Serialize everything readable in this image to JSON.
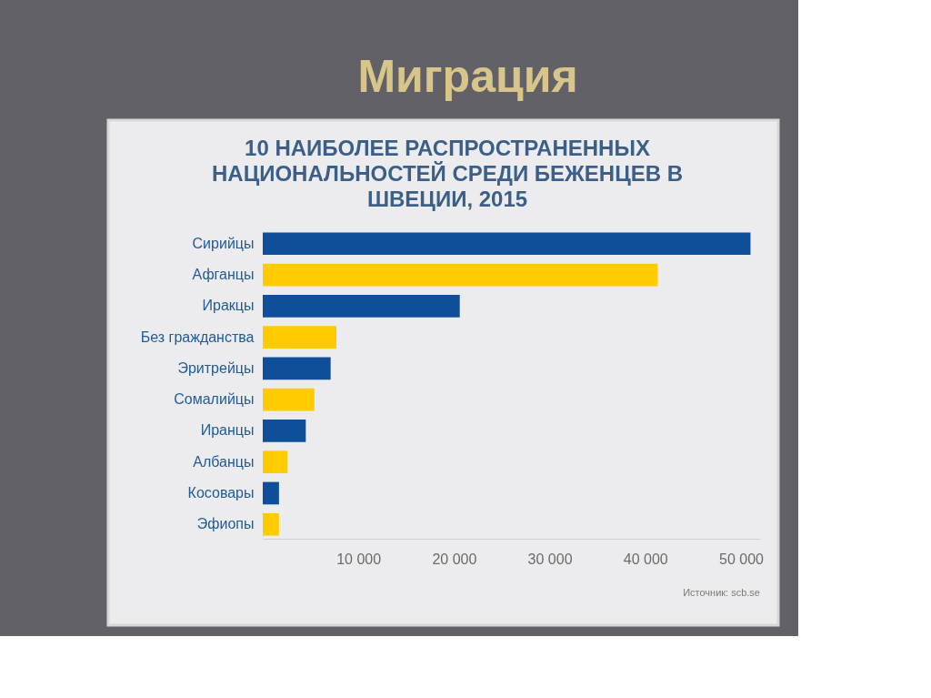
{
  "chart_data": {
    "type": "bar",
    "orientation": "horizontal",
    "title": "Миграция",
    "subtitle": "10 НАИБОЛЕЕ РАСПРОСТРАНЕННЫХ НАЦИОНАЛЬНОСТЕЙ СРЕДИ БЕЖЕНЦЕВ В ШВЕЦИИ, 2015",
    "categories": [
      "Сирийцы",
      "Афганцы",
      "Иракцы",
      "Без гражданства",
      "Эритрейцы",
      "Сомалийцы",
      "Иранцы",
      "Албанцы",
      "Косовары",
      "Эфиопы"
    ],
    "values": [
      51000,
      41300,
      20600,
      7700,
      7100,
      5400,
      4500,
      2600,
      1700,
      1700
    ],
    "colors": [
      "#0f4f9a",
      "#ffcc00",
      "#0f4f9a",
      "#ffcc00",
      "#0f4f9a",
      "#ffcc00",
      "#0f4f9a",
      "#ffcc00",
      "#0f4f9a",
      "#ffcc00"
    ],
    "xlim": [
      0,
      52000
    ],
    "xticks": [
      {
        "value": 10000,
        "label": "10 000"
      },
      {
        "value": 20000,
        "label": "20 000"
      },
      {
        "value": 30000,
        "label": "30 000"
      },
      {
        "value": 40000,
        "label": "40 000"
      },
      {
        "value": 50000,
        "label": "50 000"
      }
    ],
    "annotations": [
      "Источник: scb.se"
    ]
  }
}
